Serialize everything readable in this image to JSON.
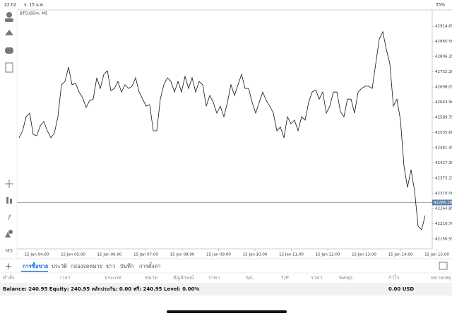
{
  "status_bar": {
    "time": "22:02",
    "date": "จ. 15 ม.ค.",
    "battery": "35%"
  },
  "chart_data": {
    "type": "line",
    "title": "BTCUSDm, M5",
    "color": "#111111",
    "values": [
      42517,
      42542,
      42592,
      42605,
      42529,
      42524,
      42560,
      42575,
      42542,
      42517,
      42534,
      42592,
      42706,
      42718,
      42769,
      42706,
      42711,
      42680,
      42660,
      42625,
      42650,
      42655,
      42731,
      42693,
      42743,
      42756,
      42685,
      42693,
      42718,
      42680,
      42706,
      42693,
      42701,
      42731,
      42680,
      42655,
      42630,
      42635,
      42542,
      42542,
      42655,
      42706,
      42731,
      42718,
      42680,
      42718,
      42680,
      42736,
      42693,
      42731,
      42680,
      42718,
      42706,
      42630,
      42668,
      42643,
      42605,
      42630,
      42592,
      42643,
      42706,
      42668,
      42706,
      42743,
      42693,
      42693,
      42643,
      42605,
      42643,
      42680,
      42650,
      42630,
      42605,
      42542,
      42555,
      42517,
      42592,
      42567,
      42580,
      42542,
      42592,
      42580,
      42643,
      42680,
      42688,
      42655,
      42680,
      42605,
      42630,
      42680,
      42680,
      42610,
      42592,
      42655,
      42655,
      42605,
      42680,
      42693,
      42701,
      42701,
      42693,
      42781,
      42869,
      42895,
      42832,
      42781,
      42630,
      42655,
      42580,
      42416,
      42340,
      42403,
      42328,
      42202,
      42189,
      42240
    ],
    "ylim": [
      42121,
      42973
    ],
    "yticks": [
      42914.65,
      {
        "value": 42860.5,
        "label": "42860.50"
      },
      42806.35,
      {
        "value": 42752.2,
        "label": "42752.20"
      },
      42698.05,
      {
        "value": 42643.9,
        "label": "42643.90"
      },
      42589.75,
      {
        "value": 42535.6,
        "label": "42535.60"
      },
      42481.45,
      {
        "value": 42427.3,
        "label": "42427.30"
      },
      42373.15,
      {
        "value": 42319,
        "label": "42319.00"
      },
      42264.85,
      {
        "value": 42210.7,
        "label": "42210.70"
      },
      42156.55
    ],
    "current_price": 42286.28,
    "xticks": [
      "15 Jan 04:00",
      "15 Jan 05:00",
      "15 Jan 06:00",
      "15 Jan 07:00",
      "15 Jan 08:00",
      "15 Jan 09:00",
      "15 Jan 10:00",
      "15 Jan 11:00",
      "15 Jan 12:00",
      "15 Jan 13:00",
      "15 Jan 14:00",
      "15 Jan 15:00"
    ]
  },
  "sidebar": {
    "timeframe": "M5"
  },
  "tabs": [
    "การซื้อขาย",
    "ประวัติ",
    "กล่องจดหมาย",
    "ข่าว",
    "บันทึก",
    "การตั้งค่า"
  ],
  "table": {
    "headers": [
      "คำสั่ง",
      "เวลา",
      "ประเภท",
      "ขนาด",
      "สัญลักษณ์",
      "ราคา",
      "S/L",
      "T/P",
      "ราคา",
      "Swap",
      "กำไร",
      "หมายเหตุ"
    ]
  },
  "summary": {
    "balance": "Balance: 240.95 Equity: 240.95 หลักประกัน: 0.00 ฟรี: 240.95 Level: 0.00%",
    "profit": "0.00 USD"
  }
}
